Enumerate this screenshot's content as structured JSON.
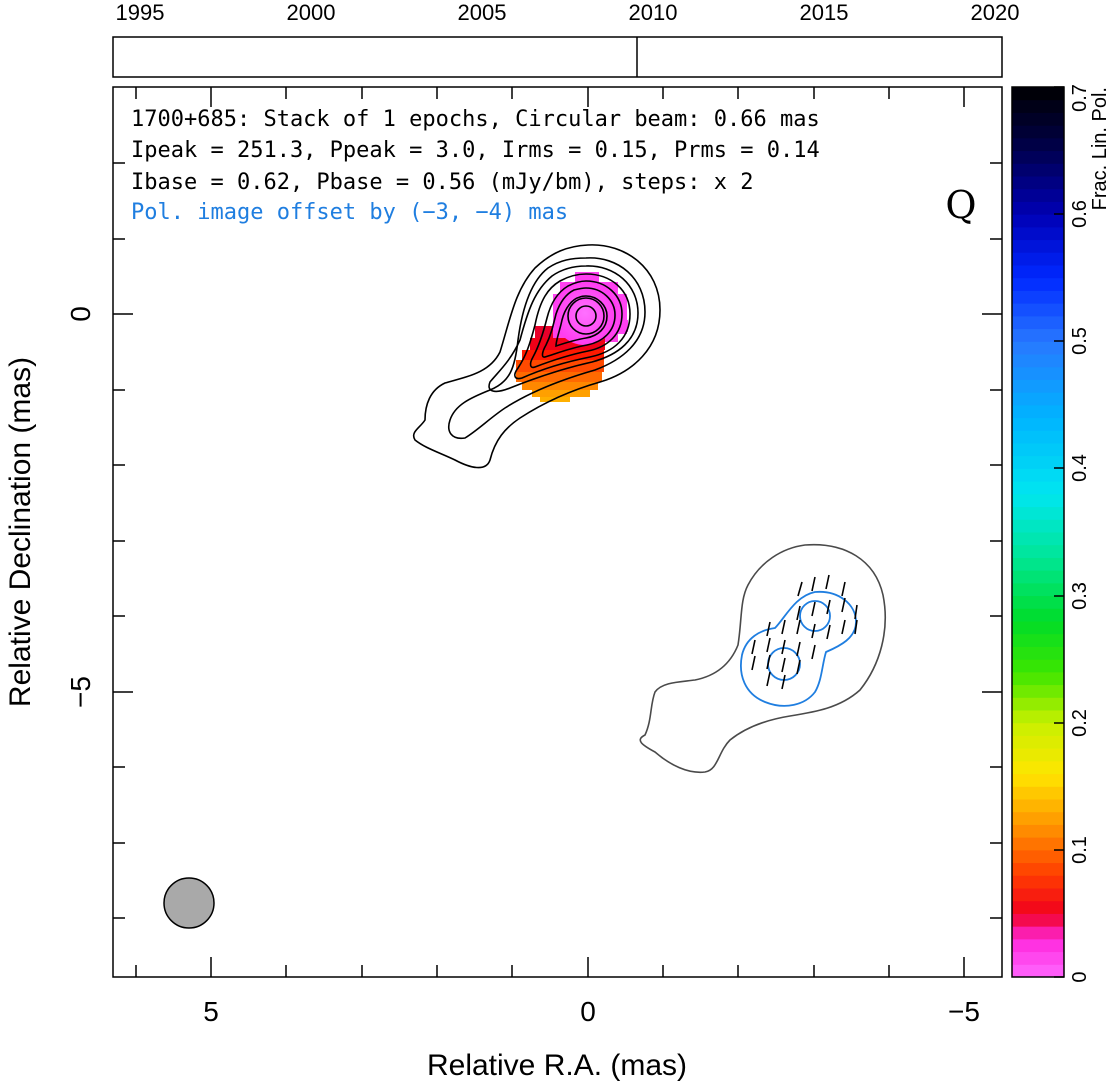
{
  "timeline": {
    "years": [
      "1995",
      "2000",
      "2005",
      "2010",
      "2015",
      "2020"
    ],
    "year_values": [
      1995,
      2000,
      2005,
      2010,
      2015,
      2020
    ],
    "range": [
      1994,
      2020
    ],
    "epoch_markers": [
      2009.1
    ]
  },
  "header": {
    "line1": "1700+685: Stack of 1 epochs, Circular beam: 0.66 mas",
    "line2": "Ipeak = 251.3, Ppeak = 3.0, Irms = 0.15, Prms = 0.14",
    "line3": "Ibase = 0.62, Pbase = 0.56 (mJy/bm), steps: x 2",
    "line4": "Pol. image offset by (−3, −4) mas",
    "line4_color": "#1f7ee0",
    "stokes_label": "Q"
  },
  "axes": {
    "xlabel": "Relative R.A. (mas)",
    "ylabel": "Relative Declination (mas)",
    "xticks": [
      "5",
      "0",
      "−5"
    ],
    "xtick_values": [
      5,
      0,
      -5
    ],
    "yticks": [
      "0",
      "−5"
    ],
    "ytick_values": [
      0,
      -5
    ],
    "xlim": [
      6.3,
      -5.5
    ],
    "ylim": [
      -8.8,
      3.0
    ]
  },
  "colorbar": {
    "label": "Frac. Lin. Pol.",
    "ticks": [
      "0",
      "0.1",
      "0.2",
      "0.3",
      "0.4",
      "0.5",
      "0.6",
      "0.7"
    ],
    "tick_values": [
      0,
      0.1,
      0.2,
      0.3,
      0.4,
      0.5,
      0.6,
      0.7
    ],
    "range": [
      0,
      0.7
    ]
  },
  "chart_data": {
    "type": "heatmap",
    "title": "1700+685: Stack of 1 epochs, Circular beam: 0.66 mas",
    "xlabel": "Relative R.A. (mas)",
    "ylabel": "Relative Declination (mas)",
    "xlim": [
      6.3,
      -5.5
    ],
    "ylim": [
      -8.8,
      3.0
    ],
    "beam": {
      "ra": 5.05,
      "dec": -7.8,
      "diameter_mas": 0.66,
      "color": "#a9a9a9"
    },
    "fractional_pol_blobs": [
      {
        "ra": 0.0,
        "dec": 0.0,
        "value": 0.01
      },
      {
        "ra": 0.7,
        "dec": -0.7,
        "value": 0.05
      },
      {
        "ra": 0.35,
        "dec": -0.85,
        "value": 0.08
      },
      {
        "ra": 0.6,
        "dec": -1.05,
        "value": 0.1
      },
      {
        "ra": 0.2,
        "dec": -1.05,
        "value": 0.13
      }
    ],
    "contour_levels_mJy": [
      0.62,
      1.24,
      2.48,
      4.96,
      9.92,
      19.84,
      39.68,
      79.36,
      158.72
    ],
    "pol_contour_color": "#1f7ee0",
    "pol_offset_mas": [
      -3,
      -4
    ],
    "evpa_region": {
      "ra_range": [
        -2.3,
        -3.6
      ],
      "dec_range": [
        -3.5,
        -5.2
      ]
    }
  }
}
